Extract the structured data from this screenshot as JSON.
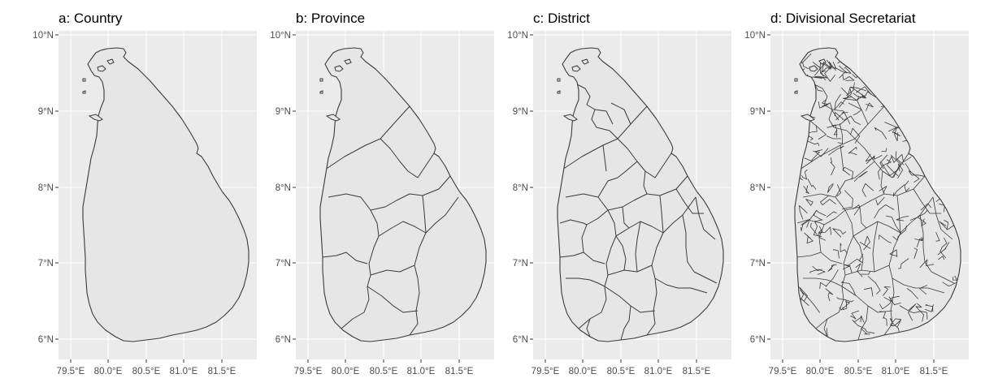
{
  "figure": {
    "panel_background": "#ebebeb",
    "grid_color": "#ffffff",
    "land_fill": "#e6e6e6",
    "boundary_color": "#3a3a3a",
    "x_ticks": [
      "79.5°E",
      "80.0°E",
      "80.5°E",
      "81.0°E",
      "81.5°E"
    ],
    "y_ticks": [
      "10°N",
      "9°N",
      "8°N",
      "7°N",
      "6°N"
    ],
    "panels": [
      {
        "title": "a: Country",
        "level": "country"
      },
      {
        "title": "b: Province",
        "level": "province"
      },
      {
        "title": "c: District",
        "level": "district"
      },
      {
        "title": "d: Divisional Secretariat",
        "level": "divisional-secretariat"
      }
    ]
  }
}
